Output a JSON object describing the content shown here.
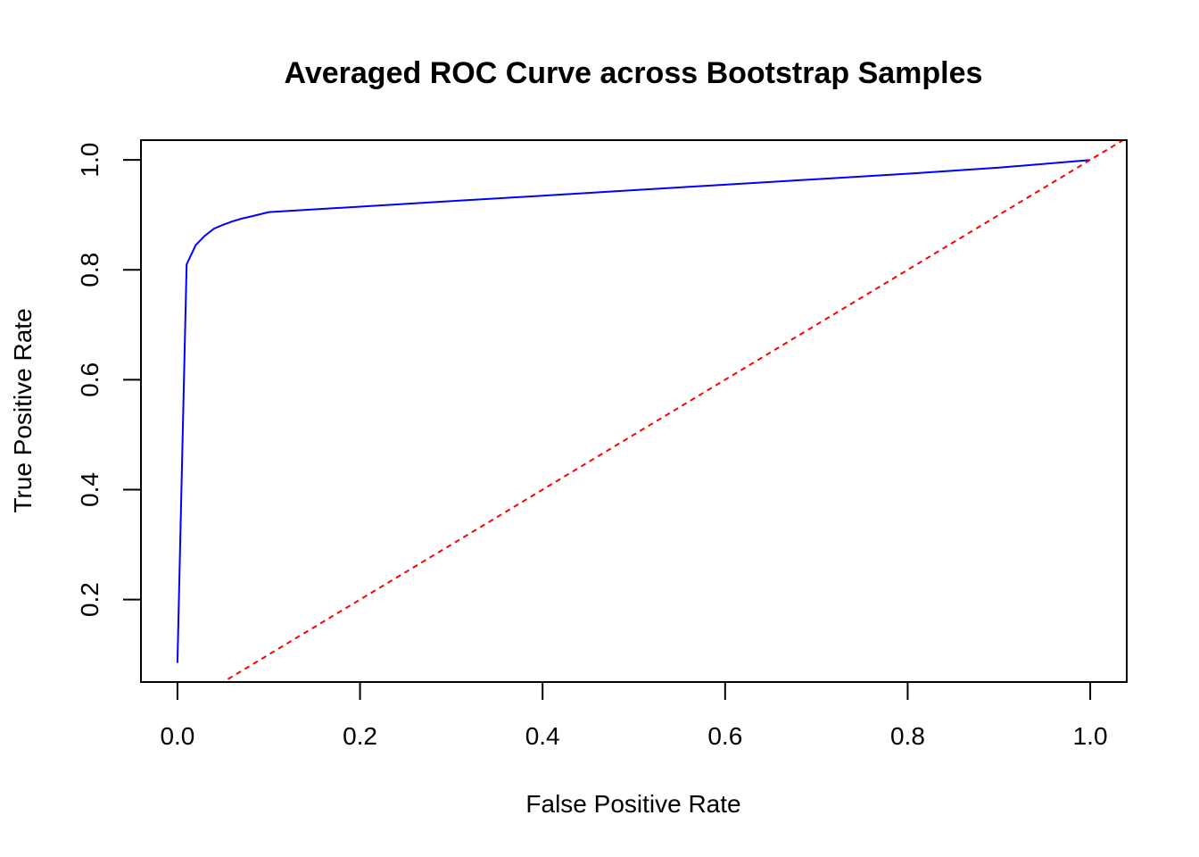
{
  "chart_data": {
    "type": "line",
    "title": "Averaged ROC Curve across Bootstrap Samples",
    "xlabel": "False Positive Rate",
    "ylabel": "True Positive Rate",
    "xlim": [
      -0.04,
      1.04
    ],
    "ylim": [
      0.05,
      1.036
    ],
    "x_ticks": [
      0.0,
      0.2,
      0.4,
      0.6,
      0.8,
      1.0
    ],
    "x_tick_labels": [
      "0.0",
      "0.2",
      "0.4",
      "0.6",
      "0.8",
      "1.0"
    ],
    "y_ticks": [
      0.2,
      0.4,
      0.6,
      0.8,
      1.0
    ],
    "y_tick_labels": [
      "0.2",
      "0.4",
      "0.6",
      "0.8",
      "1.0"
    ],
    "grid": false,
    "series": [
      {
        "style": "solid",
        "color": "#0000ff",
        "x": [
          0.0,
          0.01,
          0.02,
          0.03,
          0.04,
          0.05,
          0.06,
          0.07,
          0.08,
          0.09,
          0.1,
          0.2,
          0.3,
          0.4,
          0.5,
          0.6,
          0.7,
          0.8,
          0.9,
          1.0
        ],
        "y": [
          0.085,
          0.81,
          0.845,
          0.862,
          0.875,
          0.882,
          0.888,
          0.893,
          0.897,
          0.901,
          0.905,
          0.915,
          0.925,
          0.935,
          0.945,
          0.955,
          0.965,
          0.975,
          0.986,
          1.0
        ]
      },
      {
        "style": "dashed",
        "color": "#ff0000",
        "x": [
          0.0,
          1.04
        ],
        "y": [
          0.0,
          1.04
        ]
      }
    ]
  }
}
